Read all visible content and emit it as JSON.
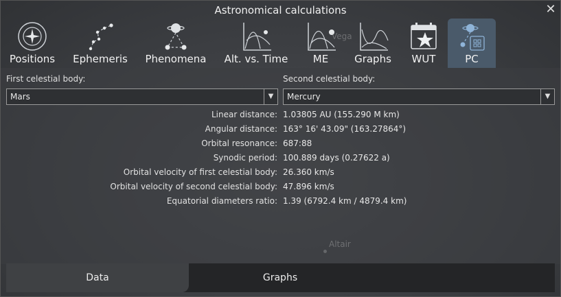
{
  "window": {
    "title": "Astronomical calculations"
  },
  "tabs": [
    {
      "label": "Positions",
      "icon": "positions-icon"
    },
    {
      "label": "Ephemeris",
      "icon": "ephemeris-icon"
    },
    {
      "label": "Phenomena",
      "icon": "phenomena-icon"
    },
    {
      "label": "Alt. vs. Time",
      "icon": "alt-vs-time-icon"
    },
    {
      "label": "ME",
      "icon": "me-icon"
    },
    {
      "label": "Graphs",
      "icon": "graphs-icon"
    },
    {
      "label": "WUT",
      "icon": "wut-calendar-icon"
    },
    {
      "label": "PC",
      "icon": "pc-icon",
      "active": true
    }
  ],
  "first_body": {
    "label": "First celestial body:",
    "value": "Mars"
  },
  "second_body": {
    "label": "Second celestial body:",
    "value": "Mercury"
  },
  "results": [
    {
      "key": "Linear distance:",
      "value": "1.03805 AU (155.290 M km)"
    },
    {
      "key": "Angular distance:",
      "value": "163° 16' 43.09\" (163.27864°)"
    },
    {
      "key": "Orbital resonance:",
      "value": "687:88"
    },
    {
      "key": "Synodic period:",
      "value": "100.889 days (0.27622 a)"
    },
    {
      "key": "Orbital velocity of first celestial body:",
      "value": "26.360 km/s"
    },
    {
      "key": "Orbital velocity of second celestial body:",
      "value": "47.896 km/s"
    },
    {
      "key": "Equatorial diameters ratio:",
      "value": "1.39 (6792.4 km / 4879.4 km)"
    }
  ],
  "background_labels": {
    "vega": "Vega",
    "altair": "Altair"
  },
  "bottom_tabs": [
    {
      "label": "Data",
      "active": true
    },
    {
      "label": "Graphs"
    }
  ],
  "colors": {
    "active_tab": "#4a5a6a",
    "icon_stroke": "#cfd3d8",
    "accent_blue": "#8fb4d8"
  }
}
